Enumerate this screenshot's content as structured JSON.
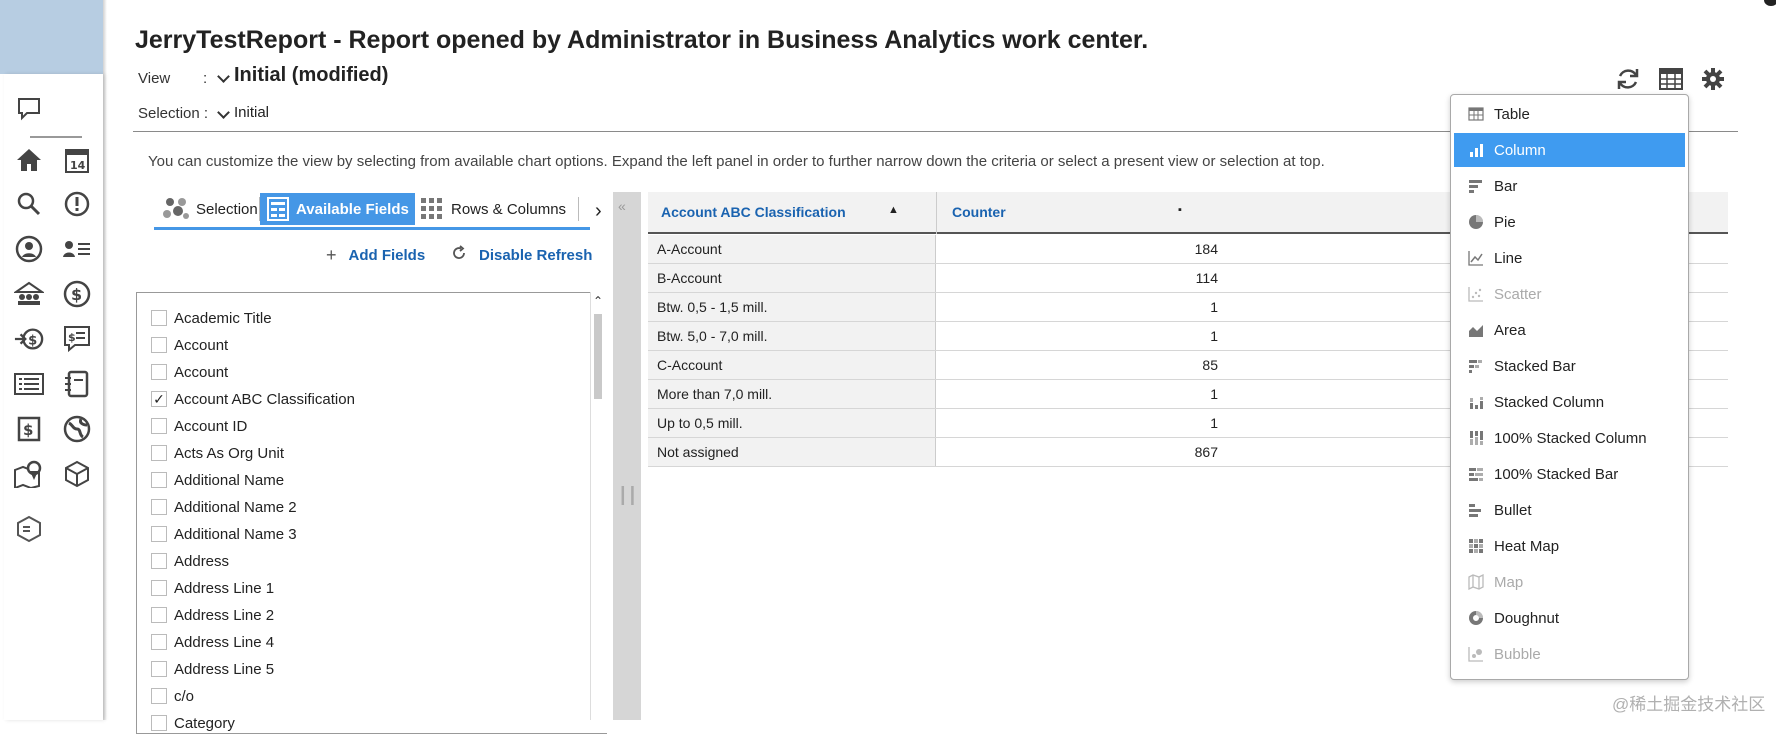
{
  "header": {
    "title": "JerryTestReport - Report opened by Administrator in Business Analytics work center.",
    "view_label": "View",
    "view_colon": ":",
    "view_value": "Initial (modified)",
    "selection_label": "Selection :",
    "selection_value": "Initial",
    "toolbar_icons": [
      "refresh-icon",
      "table-view-icon",
      "settings-gear-icon"
    ]
  },
  "hint": "You can customize the view by selecting from available chart options. Expand the left panel in order to further narrow down the criteria or select a present view or selection at top.",
  "tabs": [
    {
      "label": "Selection",
      "icon": "selection-icon",
      "active": false
    },
    {
      "label": "Available Fields",
      "icon": "fields-icon",
      "active": true
    },
    {
      "label": "Rows & Columns",
      "icon": "grid-icon",
      "active": false
    }
  ],
  "actions": {
    "add_fields": "Add Fields",
    "disable_refresh": "Disable Refresh"
  },
  "fields": [
    {
      "label": "Academic Title",
      "checked": false
    },
    {
      "label": "Account",
      "checked": false
    },
    {
      "label": "Account",
      "checked": false
    },
    {
      "label": "Account ABC Classification",
      "checked": true
    },
    {
      "label": "Account ID",
      "checked": false
    },
    {
      "label": "Acts As Org Unit",
      "checked": false
    },
    {
      "label": "Additional Name",
      "checked": false
    },
    {
      "label": "Additional Name 2",
      "checked": false
    },
    {
      "label": "Additional Name 3",
      "checked": false
    },
    {
      "label": "Address",
      "checked": false
    },
    {
      "label": "Address Line 1",
      "checked": false
    },
    {
      "label": "Address Line 2",
      "checked": false
    },
    {
      "label": "Address Line 4",
      "checked": false
    },
    {
      "label": "Address Line 5",
      "checked": false
    },
    {
      "label": "c/o",
      "checked": false
    },
    {
      "label": "Category",
      "checked": false
    }
  ],
  "table": {
    "columns": [
      "Account ABC Classification",
      "Counter"
    ],
    "rows": [
      {
        "name": "A-Account",
        "value": "184"
      },
      {
        "name": "B-Account",
        "value": "114"
      },
      {
        "name": "Btw. 0,5 - 1,5 mill.",
        "value": "1"
      },
      {
        "name": "Btw. 5,0 - 7,0 mill.",
        "value": "1"
      },
      {
        "name": "C-Account",
        "value": "85"
      },
      {
        "name": "More than 7,0 mill.",
        "value": "1"
      },
      {
        "name": "Up to 0,5 mill.",
        "value": "1"
      },
      {
        "name": "Not assigned",
        "value": "867"
      }
    ]
  },
  "chart_menu": {
    "selected": "Column",
    "items": [
      {
        "label": "Table",
        "icon": "table-icon",
        "disabled": false
      },
      {
        "label": "Column",
        "icon": "column-chart-icon",
        "disabled": false
      },
      {
        "label": "Bar",
        "icon": "bar-chart-icon",
        "disabled": false
      },
      {
        "label": "Pie",
        "icon": "pie-chart-icon",
        "disabled": false
      },
      {
        "label": "Line",
        "icon": "line-chart-icon",
        "disabled": false
      },
      {
        "label": "Scatter",
        "icon": "scatter-chart-icon",
        "disabled": true
      },
      {
        "label": "Area",
        "icon": "area-chart-icon",
        "disabled": false
      },
      {
        "label": "Stacked Bar",
        "icon": "stacked-bar-icon",
        "disabled": false
      },
      {
        "label": "Stacked Column",
        "icon": "stacked-column-icon",
        "disabled": false
      },
      {
        "label": "100% Stacked Column",
        "icon": "percent-stacked-column-icon",
        "disabled": false
      },
      {
        "label": "100% Stacked Bar",
        "icon": "percent-stacked-bar-icon",
        "disabled": false
      },
      {
        "label": "Bullet",
        "icon": "bullet-chart-icon",
        "disabled": false
      },
      {
        "label": "Heat Map",
        "icon": "heat-map-icon",
        "disabled": false
      },
      {
        "label": "Map",
        "icon": "map-icon",
        "disabled": true
      },
      {
        "label": "Doughnut",
        "icon": "doughnut-chart-icon",
        "disabled": false
      },
      {
        "label": "Bubble",
        "icon": "bubble-chart-icon",
        "disabled": true
      }
    ]
  },
  "watermark": "@稀土掘金技术社区",
  "colors": {
    "accent": "#4597e6",
    "menu_selected": "#3f9bf0",
    "link": "#1a63b0",
    "rail_top": "#b7cde2"
  }
}
